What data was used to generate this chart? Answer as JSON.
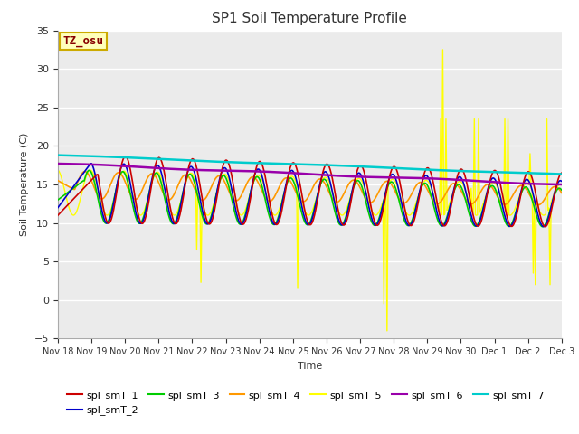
{
  "title": "SP1 Soil Temperature Profile",
  "xlabel": "Time",
  "ylabel": "Soil Temperature (C)",
  "ylim": [
    -5,
    35
  ],
  "yticks": [
    -5,
    0,
    5,
    10,
    15,
    20,
    25,
    30,
    35
  ],
  "tz_label": "TZ_osu",
  "bg_color": "#ebebeb",
  "fig_color": "#ffffff",
  "series_colors": {
    "spl_smT_1": "#cc0000",
    "spl_smT_2": "#0000cc",
    "spl_smT_3": "#00cc00",
    "spl_smT_4": "#ff9900",
    "spl_smT_5": "#ffff00",
    "spl_smT_6": "#9900aa",
    "spl_smT_7": "#00cccc"
  },
  "xtick_labels": [
    "Nov 18",
    "Nov 19",
    "Nov 20",
    "Nov 21",
    "Nov 22",
    "Nov 23",
    "Nov 24",
    "Nov 25",
    "Nov 26",
    "Nov 27",
    "Nov 28",
    "Nov 29",
    "Nov 30",
    "Dec 1",
    "Dec 2",
    "Dec 3"
  ],
  "n_points": 480
}
